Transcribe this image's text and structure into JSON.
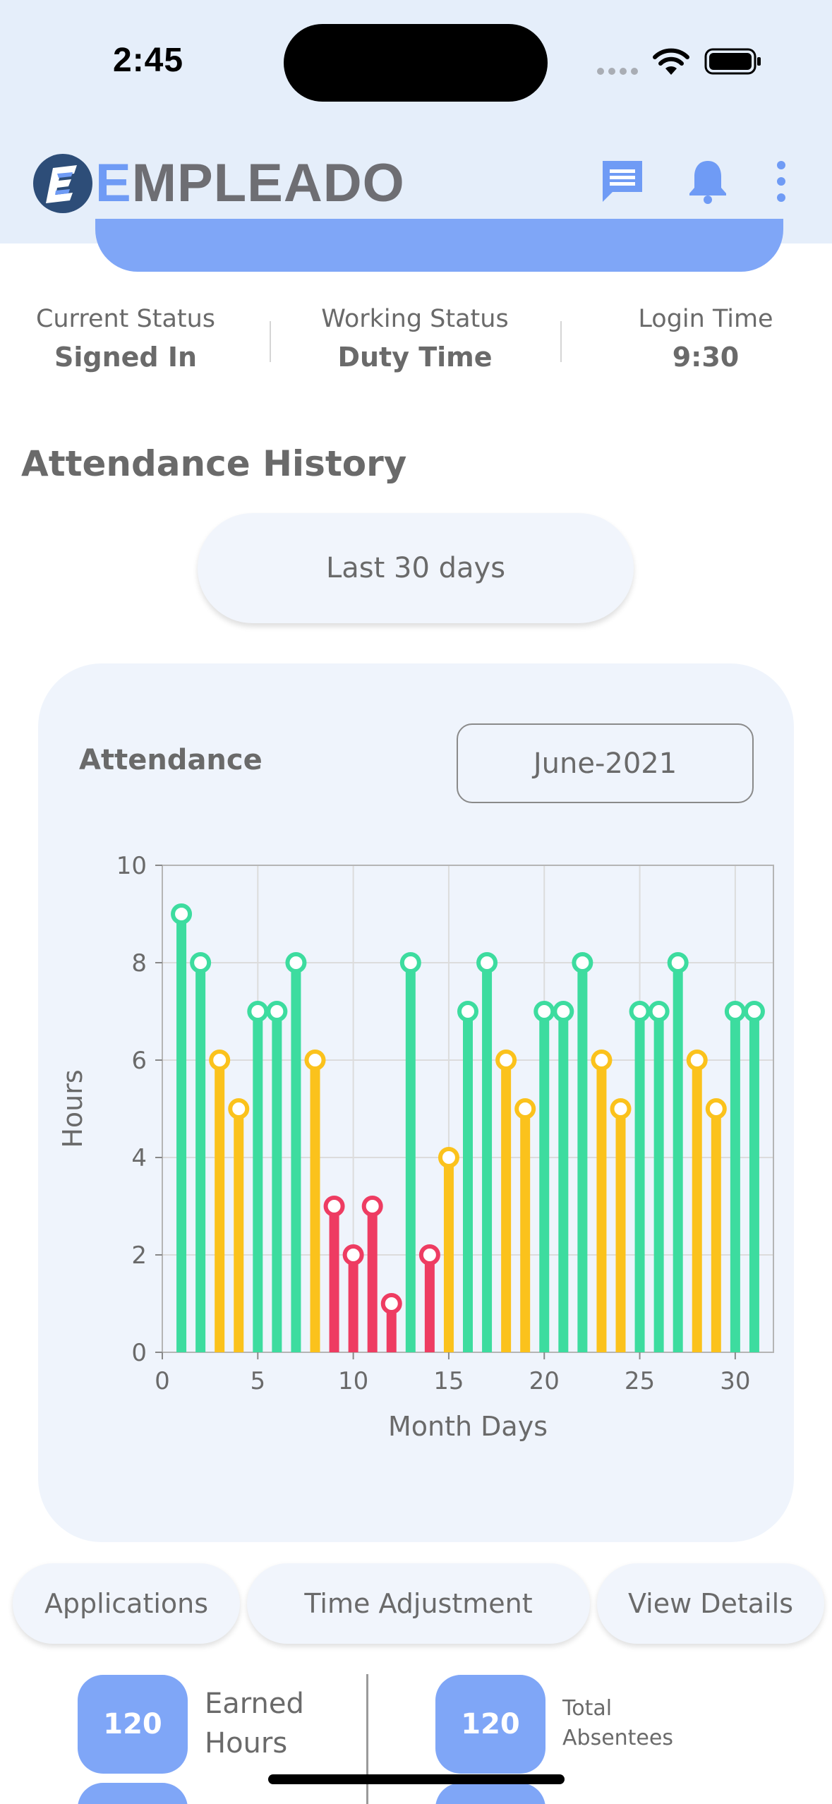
{
  "status_bar": {
    "time": "2:45"
  },
  "header": {
    "brand_first": "E",
    "brand_rest": "MPLEADO"
  },
  "status": {
    "current_status_label": "Current Status",
    "current_status_value": "Signed In",
    "working_status_label": "Working Status",
    "working_status_value": "Duty Time",
    "login_time_label": "Login Time",
    "login_time_value": "9:30"
  },
  "attendance_history": {
    "title": "Attendance History",
    "period": "Last 30 days"
  },
  "card": {
    "title": "Attendance",
    "month": "June-2021"
  },
  "colors": {
    "green": "#3ddc9f",
    "yellow": "#fbc21c",
    "red": "#ee3c62",
    "accent": "#7fa6f7"
  },
  "chart_data": {
    "type": "bar",
    "style": "lollipop",
    "xlabel": "Month Days",
    "ylabel": "Hours",
    "xlim": [
      0,
      32
    ],
    "ylim": [
      0,
      10
    ],
    "xticks": [
      0,
      5,
      10,
      15,
      20,
      25,
      30
    ],
    "yticks": [
      0,
      2,
      4,
      6,
      8,
      10
    ],
    "grid": true,
    "x": [
      1,
      2,
      3,
      4,
      5,
      6,
      7,
      8,
      9,
      10,
      11,
      12,
      13,
      14,
      15,
      16,
      17,
      18,
      19,
      20,
      21,
      22,
      23,
      24,
      25,
      26,
      27,
      28,
      29,
      30,
      31
    ],
    "values": [
      9,
      8,
      6,
      5,
      7,
      7,
      8,
      6,
      3,
      2,
      3,
      1,
      8,
      2,
      4,
      7,
      8,
      6,
      5,
      7,
      7,
      8,
      6,
      5,
      7,
      7,
      8,
      6,
      5,
      7,
      7
    ],
    "colors": [
      "green",
      "green",
      "yellow",
      "yellow",
      "green",
      "green",
      "green",
      "yellow",
      "red",
      "red",
      "red",
      "red",
      "green",
      "red",
      "yellow",
      "green",
      "green",
      "yellow",
      "yellow",
      "green",
      "green",
      "green",
      "yellow",
      "yellow",
      "green",
      "green",
      "green",
      "yellow",
      "yellow",
      "green",
      "green"
    ]
  },
  "actions": {
    "applications": "Applications",
    "time_adjustment": "Time Adjustment",
    "view_details": "View Details"
  },
  "stats": {
    "earned_hours_value": "120",
    "earned_hours_label_1": "Earned",
    "earned_hours_label_2": "Hours",
    "total_absentees_value": "120",
    "total_absentees_label_1": "Total",
    "total_absentees_label_2": "Absentees"
  }
}
